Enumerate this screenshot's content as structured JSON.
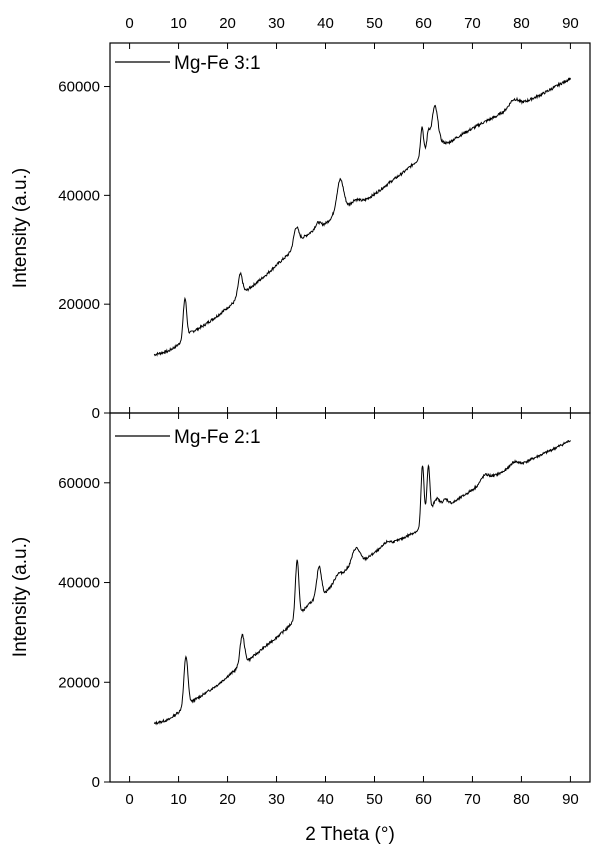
{
  "chart_data": [
    {
      "type": "line",
      "panel": "top",
      "xlabel": "",
      "ylabel": "Intensity (a.u.)",
      "xlim": [
        -4,
        94
      ],
      "ylim": [
        0,
        68000
      ],
      "x_ticks": [
        0,
        10,
        20,
        30,
        40,
        50,
        60,
        70,
        80,
        90
      ],
      "x_tick_labels": [
        "0",
        "10",
        "20",
        "30",
        "40",
        "50",
        "60",
        "70",
        "80",
        "90"
      ],
      "y_ticks": [
        0,
        20000,
        40000,
        60000
      ],
      "y_tick_labels": [
        "0",
        "20000",
        "40000",
        "60000"
      ],
      "legend": "top-left",
      "series": [
        {
          "name": "Mg-Fe 3:1",
          "color": "#000000",
          "baseline": [
            [
              5,
              10700
            ],
            [
              8,
              11400
            ],
            [
              10,
              12600
            ],
            [
              12.5,
              14800
            ],
            [
              15,
              16000
            ],
            [
              18,
              17900
            ],
            [
              21,
              20100
            ],
            [
              22.5,
              21400
            ],
            [
              24,
              22600
            ],
            [
              26,
              24000
            ],
            [
              28,
              25500
            ],
            [
              30,
              27200
            ],
            [
              32,
              28800
            ],
            [
              33,
              29700
            ],
            [
              35,
              32000
            ],
            [
              37,
              33200
            ],
            [
              39,
              34000
            ],
            [
              41,
              35600
            ],
            [
              44,
              37500
            ],
            [
              46,
              38500
            ],
            [
              48,
              39100
            ],
            [
              50,
              40200
            ],
            [
              53,
              42300
            ],
            [
              56,
              44300
            ],
            [
              58.5,
              46200
            ],
            [
              61,
              48500
            ],
            [
              63,
              49800
            ],
            [
              65,
              49600
            ],
            [
              68,
              51300
            ],
            [
              72,
              53300
            ],
            [
              75,
              54600
            ],
            [
              78,
              56300
            ],
            [
              80,
              56900
            ],
            [
              84,
              58500
            ],
            [
              87,
              60000
            ],
            [
              90,
              61500
            ]
          ],
          "peaks": [
            [
              11.3,
              7300,
              0.35
            ],
            [
              22.6,
              4000,
              0.45
            ],
            [
              34.0,
              3300,
              0.5
            ],
            [
              38.5,
              1200,
              0.6
            ],
            [
              43.0,
              6000,
              0.7
            ],
            [
              46.0,
              700,
              0.8
            ],
            [
              59.7,
              5300,
              0.3
            ],
            [
              61.0,
              3000,
              0.3
            ],
            [
              62.3,
              7000,
              0.6
            ],
            [
              78.5,
              1200,
              0.9
            ]
          ]
        }
      ]
    },
    {
      "type": "line",
      "panel": "bottom",
      "xlabel": "2 Theta (°)",
      "ylabel": "Intensity (a.u.)",
      "xlim": [
        -4,
        94
      ],
      "ylim": [
        0,
        74000
      ],
      "x_ticks": [
        0,
        10,
        20,
        30,
        40,
        50,
        60,
        70,
        80,
        90
      ],
      "x_tick_labels": [
        "0",
        "10",
        "20",
        "30",
        "40",
        "50",
        "60",
        "70",
        "80",
        "90"
      ],
      "y_ticks": [
        0,
        20000,
        40000,
        60000
      ],
      "y_tick_labels": [
        "0",
        "20000",
        "40000",
        "60000"
      ],
      "legend": "top-left",
      "series": [
        {
          "name": "Mg-Fe 2:1",
          "color": "#000000",
          "baseline": [
            [
              5,
              11700
            ],
            [
              8,
              12500
            ],
            [
              10,
              14000
            ],
            [
              12.5,
              16000
            ],
            [
              15,
              17500
            ],
            [
              18,
              19500
            ],
            [
              21,
              22000
            ],
            [
              23,
              23500
            ],
            [
              25,
              25000
            ],
            [
              28,
              27400
            ],
            [
              30,
              29000
            ],
            [
              32,
              30700
            ],
            [
              34,
              32800
            ],
            [
              36,
              35000
            ],
            [
              38,
              37000
            ],
            [
              40,
              38000
            ],
            [
              42,
              40200
            ],
            [
              44,
              42300
            ],
            [
              46,
              43500
            ],
            [
              48,
              44500
            ],
            [
              50,
              46000
            ],
            [
              53,
              47600
            ],
            [
              56,
              49000
            ],
            [
              59,
              50500
            ],
            [
              61,
              53500
            ],
            [
              63,
              55800
            ],
            [
              66,
              56000
            ],
            [
              70,
              58600
            ],
            [
              74,
              61200
            ],
            [
              78,
              63000
            ],
            [
              80,
              63800
            ],
            [
              84,
              65600
            ],
            [
              87,
              67000
            ],
            [
              90,
              68500
            ]
          ],
          "peaks": [
            [
              11.5,
              10000,
              0.4
            ],
            [
              23.0,
              6000,
              0.45
            ],
            [
              34.2,
              11500,
              0.35
            ],
            [
              38.7,
              6000,
              0.45
            ],
            [
              42.5,
              1000,
              0.6
            ],
            [
              46.2,
              3300,
              0.8
            ],
            [
              52.5,
              800,
              0.8
            ],
            [
              59.8,
              11800,
              0.3
            ],
            [
              61.0,
              10000,
              0.3
            ],
            [
              62.5,
              1500,
              0.5
            ],
            [
              64.5,
              800,
              0.5
            ],
            [
              72.5,
              1300,
              0.8
            ],
            [
              78.5,
              1000,
              0.8
            ]
          ]
        }
      ]
    }
  ]
}
